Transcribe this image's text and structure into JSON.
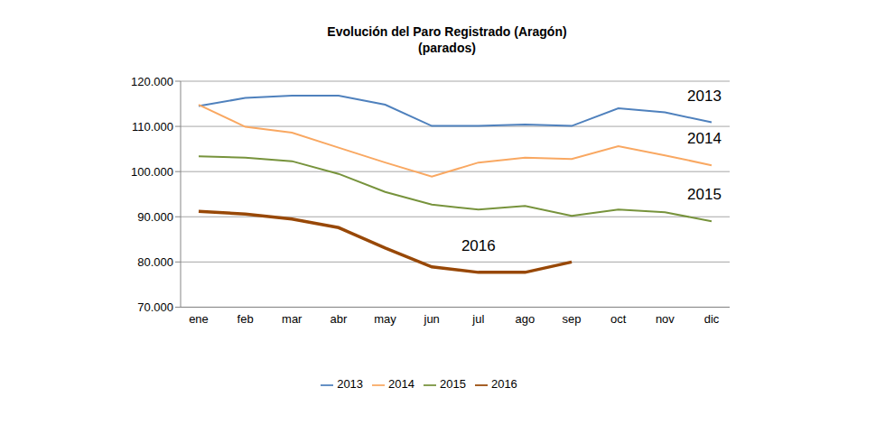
{
  "chart_data": {
    "type": "line",
    "title": "Evolución del Paro Registrado (Aragón)",
    "subtitle": "(parados)",
    "categories": [
      "ene",
      "feb",
      "mar",
      "abr",
      "may",
      "jun",
      "jul",
      "ago",
      "sep",
      "oct",
      "nov",
      "dic"
    ],
    "series": [
      {
        "name": "2013",
        "color": "#4f81bd",
        "values": [
          114500,
          116300,
          116800,
          116800,
          114800,
          110100,
          110100,
          110400,
          110100,
          114000,
          113100,
          110900
        ]
      },
      {
        "name": "2014",
        "color": "#f9a862",
        "values": [
          114800,
          109900,
          108600,
          105300,
          102000,
          98900,
          102000,
          103100,
          102800,
          105600,
          103600,
          101400
        ]
      },
      {
        "name": "2015",
        "color": "#77933c",
        "values": [
          103400,
          103100,
          102300,
          99500,
          95500,
          92700,
          91600,
          92400,
          90200,
          91600,
          91000,
          89000
        ]
      },
      {
        "name": "2016",
        "color": "#984807",
        "values": [
          91200,
          90600,
          89500,
          87600,
          83100,
          78900,
          77700,
          77700,
          80000,
          null,
          null,
          null
        ]
      }
    ],
    "ylim": [
      70000,
      120000
    ],
    "yticks": [
      {
        "value": 70000,
        "label": "70.000"
      },
      {
        "value": 80000,
        "label": "80.000"
      },
      {
        "value": 90000,
        "label": "90.000"
      },
      {
        "value": 100000,
        "label": "100.000"
      },
      {
        "value": 110000,
        "label": "110.000"
      },
      {
        "value": 120000,
        "label": "120.000"
      }
    ],
    "grid": true,
    "legend": "bottom"
  }
}
